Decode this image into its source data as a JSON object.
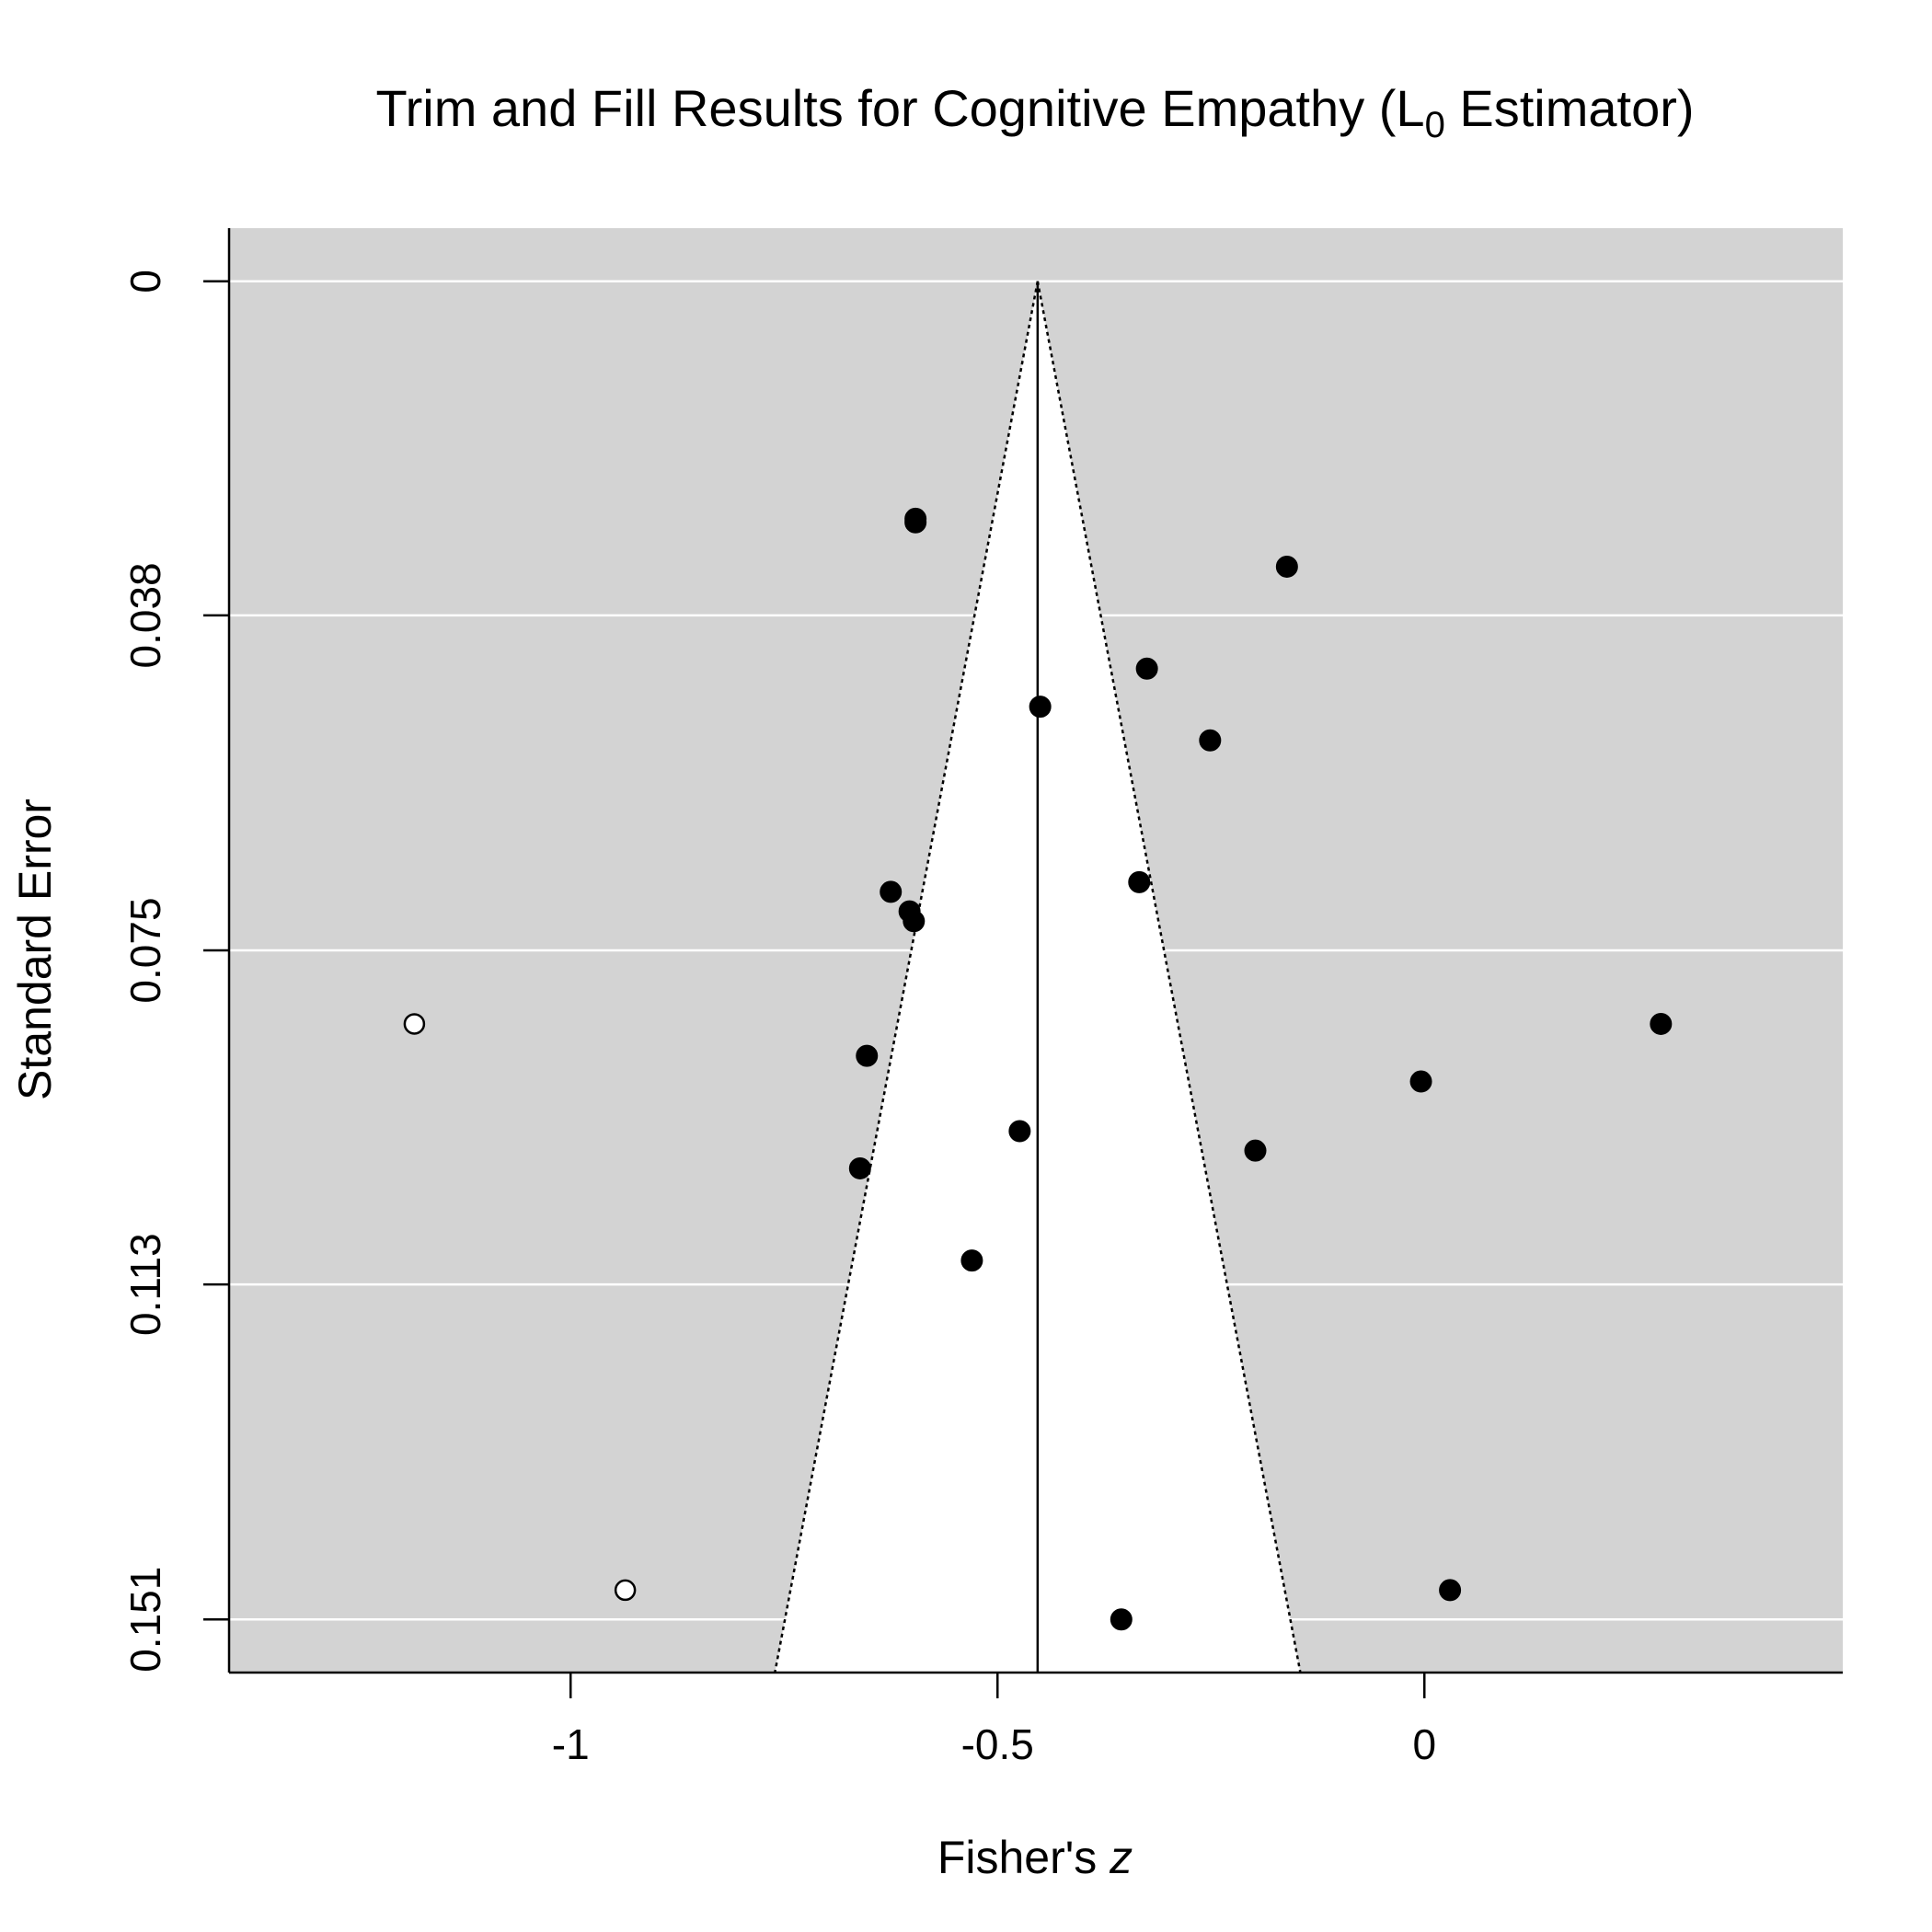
{
  "chart_data": {
    "type": "scatter",
    "title": "Trim and Fill Results for Cognitive Empathy (L",
    "title_subscript": "0",
    "title_suffix": " Estimator)",
    "xlabel_prefix": "Fisher's ",
    "xlabel_italic": "z",
    "ylabel": "Standard Error",
    "xlim": [
      -1.4,
      0.49
    ],
    "ylim": [
      0.157,
      -0.006
    ],
    "y_reversed": true,
    "x_ticks": [
      {
        "value": -1,
        "label": "-1"
      },
      {
        "value": -0.5,
        "label": "-0.5"
      },
      {
        "value": 0,
        "label": "0"
      }
    ],
    "y_ticks": [
      {
        "value": 0,
        "label": "0"
      },
      {
        "value": 0.0377,
        "label": "0.038"
      },
      {
        "value": 0.0755,
        "label": "0.075"
      },
      {
        "value": 0.1132,
        "label": "0.113"
      },
      {
        "value": 0.151,
        "label": "0.151"
      }
    ],
    "grid": true,
    "background_color": "#d3d3d3",
    "funnel_color": "#ffffff",
    "estimate": -0.453,
    "funnel_multiplier": 1.96,
    "observed_studies": [
      {
        "x": -0.596,
        "y": 0.0268
      },
      {
        "x": -0.596,
        "y": 0.0272
      },
      {
        "x": -0.161,
        "y": 0.0322
      },
      {
        "x": -0.325,
        "y": 0.0437
      },
      {
        "x": -0.45,
        "y": 0.048
      },
      {
        "x": -0.251,
        "y": 0.0518
      },
      {
        "x": -0.334,
        "y": 0.0678
      },
      {
        "x": -0.625,
        "y": 0.0689
      },
      {
        "x": -0.603,
        "y": 0.0711
      },
      {
        "x": -0.598,
        "y": 0.0722
      },
      {
        "x": 0.277,
        "y": 0.0838
      },
      {
        "x": -0.653,
        "y": 0.0874
      },
      {
        "x": -0.004,
        "y": 0.0903
      },
      {
        "x": -0.474,
        "y": 0.0959
      },
      {
        "x": -0.198,
        "y": 0.0981
      },
      {
        "x": -0.661,
        "y": 0.1001
      },
      {
        "x": -0.53,
        "y": 0.1105
      },
      {
        "x": 0.03,
        "y": 0.1477
      },
      {
        "x": -0.355,
        "y": 0.151
      }
    ],
    "filled_studies": [
      {
        "x": -1.183,
        "y": 0.0838
      },
      {
        "x": -0.936,
        "y": 0.1477
      }
    ]
  }
}
